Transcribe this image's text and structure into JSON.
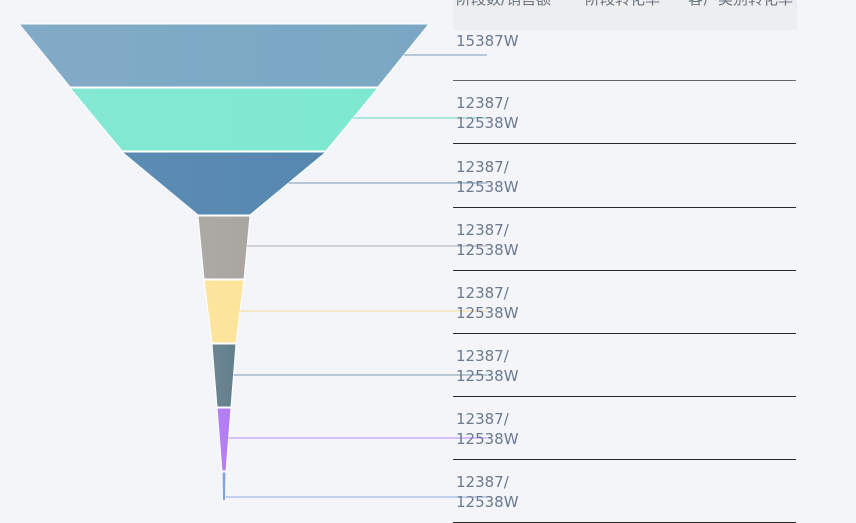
{
  "table": {
    "headers": [
      "阶段数/销售额",
      "阶段转化率",
      "客户类别转化率"
    ],
    "rows": [
      {
        "value": "15387W"
      },
      {
        "value": "12387/\n12538W"
      },
      {
        "value": "12387/\n12538W"
      },
      {
        "value": "12387/\n12538W"
      },
      {
        "value": "12387/\n12538W"
      },
      {
        "value": "12387/\n12538W"
      },
      {
        "value": "12387/\n12538W"
      },
      {
        "value": "12387/\n12538W"
      }
    ]
  },
  "chart_data": {
    "type": "funnel",
    "stage_widths": [
      410,
      308,
      204,
      52,
      40,
      24,
      14,
      4
    ],
    "stages": [
      {
        "color": "#7ba7c4",
        "line": "#7aa0bc"
      },
      {
        "color": "#7ee8d0",
        "line": "#6fd3b8"
      },
      {
        "color": "#5587b0",
        "line": "#7a9cb8"
      },
      {
        "color": "#a9a6a0",
        "line": "#a7aeb6"
      },
      {
        "color": "#fde49a",
        "line": "#f6dc92"
      },
      {
        "color": "#647f8c",
        "line": "#7f9aab"
      },
      {
        "color": "#b27bf5",
        "line": "#b88bf2"
      },
      {
        "color": "#7aa3e6",
        "line": "#8fb0e6"
      }
    ]
  }
}
